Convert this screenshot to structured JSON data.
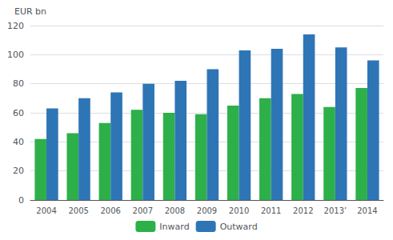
{
  "chart_data": {
    "type": "bar",
    "ylabel": "EUR bn",
    "categories": [
      "2004",
      "2005",
      "2006",
      "2007",
      "2008",
      "2009",
      "2010",
      "2011",
      "2012",
      "2013’",
      "2014"
    ],
    "series": [
      {
        "name": "Inward",
        "color": "#2db049",
        "values": [
          42,
          46,
          53,
          62,
          60,
          59,
          65,
          70,
          73,
          64,
          77
        ]
      },
      {
        "name": "Outward",
        "color": "#2e75b6",
        "values": [
          63,
          70,
          74,
          80,
          82,
          90,
          103,
          104,
          114,
          105,
          96
        ]
      }
    ],
    "ylim": [
      0,
      120
    ],
    "yticks": [
      0,
      20,
      40,
      60,
      80,
      100,
      120
    ],
    "grid": true,
    "legend": "bottom"
  }
}
